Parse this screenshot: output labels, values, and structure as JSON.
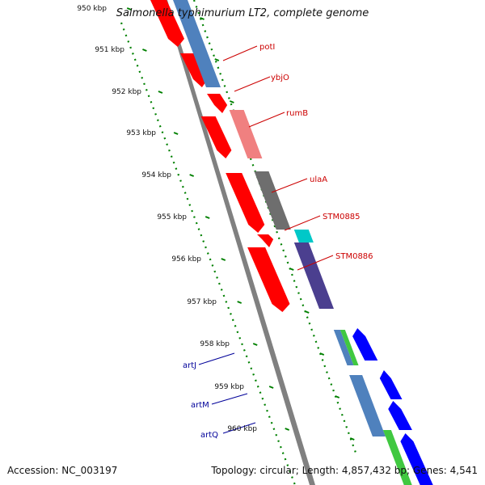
{
  "title": "Salmonella typhimurium LT2, complete genome",
  "footer": {
    "accession": "Accession: NC_003197",
    "summary": "Topology: circular; Length: 4,857,432 bp; Genes: 4,541"
  },
  "colors": {
    "forward_gene": "#ff0000",
    "reverse_gene": "#0000ff",
    "forward_label": "#cc0000",
    "reverse_label": "#000099",
    "scale_ticks": "#008000",
    "backbone": "#808080"
  },
  "ticks": [
    "950 kbp",
    "951 kbp",
    "952 kbp",
    "953 kbp",
    "954 kbp",
    "955 kbp",
    "956 kbp",
    "957 kbp",
    "958 kbp",
    "959 kbp",
    "960 kbp"
  ],
  "forward_labels": [
    "potI",
    "ybjO",
    "rumB",
    "ulaA",
    "STM0885",
    "STM0886"
  ],
  "reverse_labels": [
    "artJ",
    "artM",
    "artQ"
  ]
}
